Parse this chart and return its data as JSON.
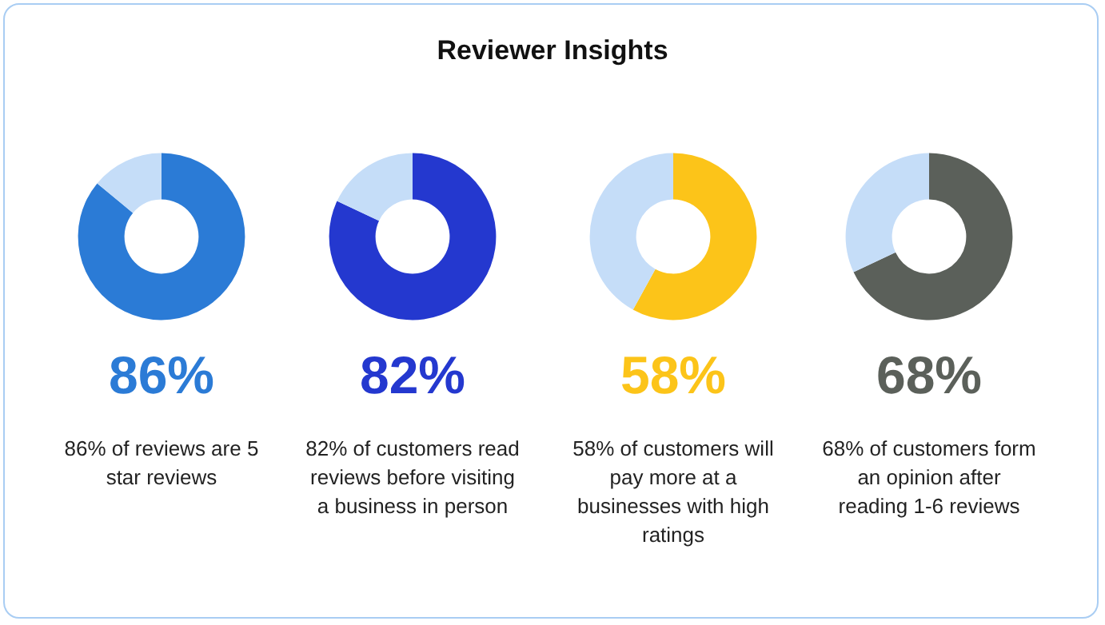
{
  "chart_data": [
    {
      "type": "donut",
      "title": "Reviewer Insights",
      "categories": [
        null,
        null
      ],
      "values": [
        86,
        14
      ],
      "colors": [
        "#2b7bd6",
        "#c5ddf8"
      ],
      "value_labels": [
        "86%",
        null
      ],
      "annotations": [
        "86% of reviews are 5 star reviews"
      ]
    },
    {
      "type": "donut",
      "categories": [
        null,
        null
      ],
      "values": [
        82,
        18
      ],
      "colors": [
        "#2438cf",
        "#c5ddf8"
      ],
      "value_labels": [
        "82%",
        null
      ],
      "annotations": [
        "82% of customers read reviews before visiting a business in person"
      ]
    },
    {
      "type": "donut",
      "categories": [
        null,
        null
      ],
      "values": [
        58,
        42
      ],
      "colors": [
        "#fcc419",
        "#c5ddf8"
      ],
      "value_labels": [
        "58%",
        null
      ],
      "annotations": [
        "58% of customers will pay more at a businesses with high ratings"
      ]
    },
    {
      "type": "donut",
      "categories": [
        null,
        null
      ],
      "values": [
        68,
        32
      ],
      "colors": [
        "#5b605a",
        "#c5ddf8"
      ],
      "value_labels": [
        "68%",
        null
      ],
      "annotations": [
        "68% of customers form an opinion after reading 1-6 reviews"
      ]
    }
  ]
}
